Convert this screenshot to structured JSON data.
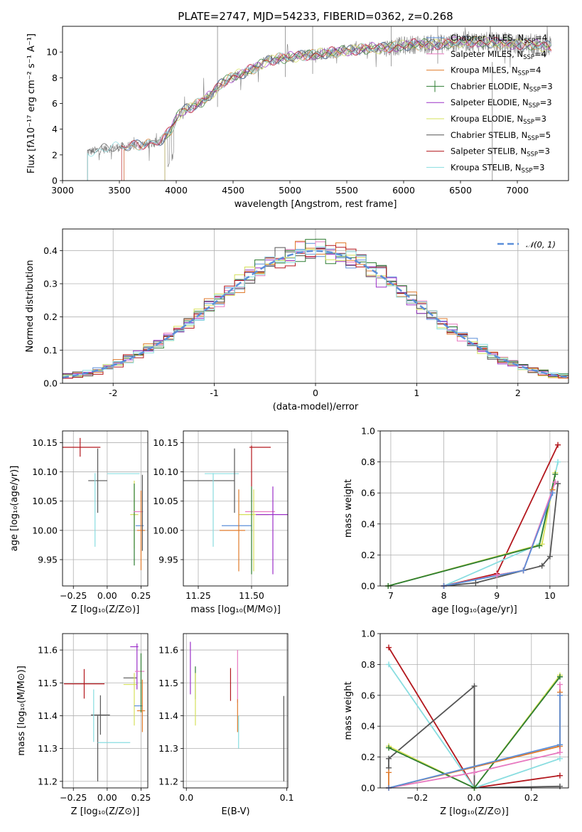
{
  "colors": {
    "chabrier_miles": "#5b8fd9",
    "salpeter_miles": "#e879c0",
    "kroupa_miles": "#e07b2c",
    "chabrier_elodie": "#2e7d32",
    "salpeter_elodie": "#9b30c8",
    "kroupa_elodie": "#d5e05a",
    "chabrier_stelib": "#555555",
    "salpeter_stelib": "#b3171d",
    "kroupa_stelib": "#88dde0",
    "spectrum": "#808080",
    "gauss": "#5b8fd9"
  },
  "chart_data": [
    {
      "id": "spectrum",
      "type": "line",
      "title": "PLATE=2747, MJD=54233, FIBERID=0362, z=0.268",
      "xlabel": "wavelength [Angstrom, rest frame]",
      "ylabel": "Flux [fλ10⁻¹⁷ erg cm⁻² s⁻¹ A⁻¹]",
      "xlim": [
        3000,
        7450
      ],
      "ylim": [
        0,
        12
      ],
      "xticks": [
        3000,
        3500,
        4000,
        4500,
        5000,
        5500,
        6000,
        6500,
        7000
      ],
      "yticks": [
        0,
        2,
        4,
        6,
        8,
        10
      ],
      "grid": false,
      "legend_position": "right",
      "legend": [
        "Chabrier MILES, N_SSP=4",
        "Salpeter MILES, N_SSP=4",
        "Kroupa MILES, N_SSP=4",
        "Chabrier ELODIE, N_SSP=3",
        "Salpeter ELODIE, N_SSP=3",
        "Kroupa ELODIE, N_SSP=3",
        "Chabrier STELIB, N_SSP=5",
        "Salpeter STELIB, N_SSP=3",
        "Kroupa STELIB, N_SSP=3"
      ],
      "continuum": {
        "x": [
          3200,
          3300,
          3400,
          3500,
          3600,
          3700,
          3800,
          3850,
          3900,
          3950,
          4000,
          4050,
          4100,
          4200,
          4300,
          4400,
          4500,
          4600,
          4700,
          4800,
          4900,
          5000,
          5100,
          5200,
          5300,
          5400,
          5500,
          5600,
          5700,
          5800,
          5900,
          6000,
          6100,
          6200,
          6300,
          6400,
          6500,
          6600,
          6700,
          6800,
          6900,
          7000,
          7100,
          7200,
          7300
        ],
        "y": [
          2.2,
          2.35,
          2.5,
          2.6,
          2.7,
          2.8,
          2.9,
          3.1,
          3.4,
          3.9,
          4.8,
          5.4,
          5.6,
          6.0,
          6.6,
          7.6,
          8.1,
          8.4,
          8.8,
          9.3,
          9.5,
          9.6,
          9.7,
          9.8,
          9.9,
          10.0,
          10.1,
          10.2,
          10.3,
          10.3,
          10.4,
          10.5,
          10.6,
          10.6,
          10.6,
          10.7,
          10.8,
          10.8,
          10.8,
          10.7,
          10.7,
          10.6,
          10.6,
          10.5,
          10.4
        ]
      }
    },
    {
      "id": "residuals",
      "type": "line",
      "xlabel": "(data-model)/error",
      "ylabel": "Normed distribution",
      "xlim": [
        -2.5,
        2.5
      ],
      "ylim": [
        0,
        0.465
      ],
      "xticks": [
        -2,
        -1,
        0,
        1,
        2
      ],
      "yticks": [
        0.0,
        0.1,
        0.2,
        0.3,
        0.4
      ],
      "grid": true,
      "legend_position": "top-right",
      "legend": [
        "𝒩(0, 1)"
      ],
      "bins": [
        -2.5,
        -2.4,
        -2.3,
        -2.2,
        -2.1,
        -2.0,
        -1.9,
        -1.8,
        -1.7,
        -1.6,
        -1.5,
        -1.4,
        -1.3,
        -1.2,
        -1.1,
        -1.0,
        -0.9,
        -0.8,
        -0.7,
        -0.6,
        -0.5,
        -0.4,
        -0.3,
        -0.2,
        -0.1,
        0.0,
        0.1,
        0.2,
        0.3,
        0.4,
        0.5,
        0.6,
        0.7,
        0.8,
        0.9,
        1.0,
        1.1,
        1.2,
        1.3,
        1.4,
        1.5,
        1.6,
        1.7,
        1.8,
        1.9,
        2.0,
        2.1,
        2.2,
        2.3,
        2.4
      ]
    },
    {
      "id": "age_vs_Z",
      "type": "scatter",
      "xlabel": "Z [log₁₀(Z/Z⊙)]",
      "ylabel": "age  [log₁₀(age/yr)]",
      "xlim": [
        -0.33,
        0.3
      ],
      "ylim": [
        9.905,
        10.17
      ],
      "xticks": [
        -0.25,
        0.0,
        0.25
      ],
      "xticklabels": [
        "−0.25",
        "0.00",
        "0.25"
      ],
      "yticks": [
        9.95,
        10.0,
        10.05,
        10.1,
        10.15
      ],
      "grid": true,
      "points": [
        {
          "model": "salpeter_stelib",
          "x": -0.2,
          "xerr": 0.15,
          "y": 10.142,
          "yerr": 0.016
        },
        {
          "model": "chabrier_stelib",
          "x": -0.07,
          "xerr": 0.07,
          "y": 10.085,
          "yerr": 0.055
        },
        {
          "model": "kroupa_stelib",
          "x": -0.09,
          "xerr": 0.0,
          "y": 10.035,
          "yerr": 0.063
        },
        {
          "model": "kroupa_stelib",
          "x": 0.12,
          "xerr": 0.12,
          "y": 10.097,
          "yerr": 0.0
        },
        {
          "model": "kroupa_elodie",
          "x": 0.2,
          "xerr": 0.03,
          "y": 10.027,
          "yerr": 0.058
        },
        {
          "model": "chabrier_elodie",
          "x": 0.2,
          "xerr": 0.0,
          "y": 10.01,
          "yerr": 0.07
        },
        {
          "model": "salpeter_miles",
          "x": 0.23,
          "xerr": 0.035,
          "y": 10.032,
          "yerr": 0.0
        },
        {
          "model": "chabrier_miles",
          "x": 0.24,
          "xerr": 0.03,
          "y": 10.008,
          "yerr": 0.0
        },
        {
          "model": "kroupa_miles",
          "x": 0.25,
          "xerr": 0.03,
          "y": 10.0,
          "yerr": 0.068
        },
        {
          "model": "chabrier_stelib",
          "x": 0.26,
          "xerr": 0.0,
          "y": 10.03,
          "yerr": 0.065
        }
      ]
    },
    {
      "id": "age_vs_mass",
      "type": "scatter",
      "xlabel": "mass [log₁₀(M/M⊙)]",
      "ylabel": "",
      "xlim": [
        11.18,
        11.67
      ],
      "ylim": [
        9.905,
        10.17
      ],
      "xticks": [
        11.25,
        11.5
      ],
      "xticklabels": [
        "11.25",
        "11.50"
      ],
      "yticks": [
        9.95,
        10.0,
        10.05,
        10.1,
        10.15
      ],
      "grid": true,
      "points": [
        {
          "model": "chabrier_stelib",
          "x": 11.3,
          "xerr": 0.12,
          "y": 10.085,
          "yerr": 0.0
        },
        {
          "model": "kroupa_stelib",
          "x": 11.36,
          "xerr": 0.08,
          "y": 10.097,
          "yerr": 0.0
        },
        {
          "model": "kroupa_stelib",
          "x": 11.32,
          "xerr": 0.0,
          "y": 10.035,
          "yerr": 0.063
        },
        {
          "model": "chabrier_stelib",
          "x": 11.42,
          "xerr": 0.0,
          "y": 10.085,
          "yerr": 0.055
        },
        {
          "model": "salpeter_stelib",
          "x": 11.54,
          "xerr": 0.05,
          "y": 10.142,
          "yerr": 0.0
        },
        {
          "model": "salpeter_stelib",
          "x": 11.5,
          "xerr": 0.0,
          "y": 10.11,
          "yerr": 0.035
        },
        {
          "model": "kroupa_miles",
          "x": 11.41,
          "xerr": 0.06,
          "y": 10.0,
          "yerr": 0.0
        },
        {
          "model": "chabrier_miles",
          "x": 11.43,
          "xerr": 0.07,
          "y": 10.008,
          "yerr": 0.0
        },
        {
          "model": "kroupa_elodie",
          "x": 11.51,
          "xerr": 0.07,
          "y": 10.027,
          "yerr": 0.0
        },
        {
          "model": "salpeter_miles",
          "x": 11.54,
          "xerr": 0.07,
          "y": 10.032,
          "yerr": 0.0
        },
        {
          "model": "salpeter_elodie",
          "x": 11.6,
          "xerr": 0.08,
          "y": 10.027,
          "yerr": 0.0
        },
        {
          "model": "salpeter_elodie",
          "x": 11.6,
          "xerr": 0.0,
          "y": 10.0,
          "yerr": 0.075
        },
        {
          "model": "kroupa_miles",
          "x": 11.44,
          "xerr": 0.0,
          "y": 10.0,
          "yerr": 0.07
        },
        {
          "model": "chabrier_elodie",
          "x": 11.5,
          "xerr": 0.0,
          "y": 10.0,
          "yerr": 0.075
        },
        {
          "model": "kroupa_elodie",
          "x": 11.51,
          "xerr": 0.0,
          "y": 10.0,
          "yerr": 0.07
        }
      ]
    },
    {
      "id": "weight_vs_age",
      "type": "line",
      "xlabel": "age  [log₁₀(age/yr)]",
      "ylabel": "mass weight",
      "xlim": [
        6.8,
        10.35
      ],
      "ylim": [
        0,
        1.0
      ],
      "xticks": [
        7,
        8,
        9,
        10
      ],
      "yticks": [
        0.0,
        0.2,
        0.4,
        0.6,
        0.8,
        1.0
      ],
      "grid": true,
      "series": [
        {
          "model": "salpeter_stelib",
          "x": [
            8.0,
            9.0,
            10.15
          ],
          "y": [
            0.0,
            0.08,
            0.91
          ]
        },
        {
          "model": "kroupa_stelib",
          "x": [
            8.0,
            9.8,
            10.15
          ],
          "y": [
            0.0,
            0.27,
            0.8
          ]
        },
        {
          "model": "kroupa_elodie",
          "x": [
            6.95,
            9.85,
            10.1
          ],
          "y": [
            0.0,
            0.27,
            0.73
          ]
        },
        {
          "model": "chabrier_elodie",
          "x": [
            6.95,
            9.8,
            10.1
          ],
          "y": [
            0.0,
            0.26,
            0.72
          ]
        },
        {
          "model": "chabrier_stelib",
          "x": [
            8.0,
            8.6,
            9.5,
            9.85,
            10.0,
            10.15
          ],
          "y": [
            0.0,
            0.02,
            0.1,
            0.13,
            0.19,
            0.66
          ]
        },
        {
          "model": "kroupa_miles",
          "x": [
            8.0,
            9.0,
            9.5,
            10.05
          ],
          "y": [
            0.0,
            0.07,
            0.1,
            0.62
          ]
        },
        {
          "model": "salpeter_miles",
          "x": [
            8.0,
            9.0,
            9.5,
            10.1
          ],
          "y": [
            0.0,
            0.07,
            0.1,
            0.67
          ]
        },
        {
          "model": "chabrier_miles",
          "x": [
            8.0,
            9.5,
            10.05
          ],
          "y": [
            0.0,
            0.1,
            0.6
          ]
        }
      ]
    },
    {
      "id": "mass_vs_Z",
      "type": "scatter",
      "xlabel": "Z [log₁₀(Z/Z⊙)]",
      "ylabel": "mass [log₁₀(M/M⊙)]",
      "xlim": [
        -0.33,
        0.3
      ],
      "ylim": [
        11.18,
        11.65
      ],
      "xticks": [
        -0.25,
        0.0,
        0.25
      ],
      "xticklabels": [
        "−0.25",
        "0.00",
        "0.25"
      ],
      "yticks": [
        11.2,
        11.3,
        11.4,
        11.5,
        11.6
      ],
      "grid": true,
      "points": [
        {
          "model": "salpeter_stelib",
          "x": -0.17,
          "xerr": 0.15,
          "y": 11.497,
          "yerr": 0.045
        },
        {
          "model": "chabrier_stelib",
          "x": -0.05,
          "xerr": 0.07,
          "y": 11.402,
          "yerr": 0.06
        },
        {
          "model": "chabrier_stelib",
          "x": -0.07,
          "xerr": 0.0,
          "y": 11.3,
          "yerr": 0.1
        },
        {
          "model": "kroupa_stelib",
          "x": 0.05,
          "xerr": 0.12,
          "y": 11.318,
          "yerr": 0.0
        },
        {
          "model": "kroupa_stelib",
          "x": -0.1,
          "xerr": 0.0,
          "y": 11.4,
          "yerr": 0.08
        },
        {
          "model": "chabrier_stelib",
          "x": 0.17,
          "xerr": 0.05,
          "y": 11.515,
          "yerr": 0.0
        },
        {
          "model": "kroupa_elodie",
          "x": 0.17,
          "xerr": 0.05,
          "y": 11.495,
          "yerr": 0.0
        },
        {
          "model": "salpeter_elodie",
          "x": 0.2,
          "xerr": 0.03,
          "y": 11.61,
          "yerr": 0.0
        },
        {
          "model": "salpeter_elodie",
          "x": 0.22,
          "xerr": 0.0,
          "y": 11.55,
          "yerr": 0.07
        },
        {
          "model": "salpeter_miles",
          "x": 0.24,
          "xerr": 0.035,
          "y": 11.535,
          "yerr": 0.0
        },
        {
          "model": "kroupa_elodie",
          "x": 0.2,
          "xerr": 0.0,
          "y": 11.45,
          "yerr": 0.08
        },
        {
          "model": "chabrier_miles",
          "x": 0.23,
          "xerr": 0.03,
          "y": 11.43,
          "yerr": 0.0
        },
        {
          "model": "kroupa_miles",
          "x": 0.25,
          "xerr": 0.03,
          "y": 11.415,
          "yerr": 0.0
        },
        {
          "model": "kroupa_miles",
          "x": 0.26,
          "xerr": 0.0,
          "y": 11.43,
          "yerr": 0.08
        },
        {
          "model": "chabrier_elodie",
          "x": 0.25,
          "xerr": 0.0,
          "y": 11.5,
          "yerr": 0.09
        }
      ]
    },
    {
      "id": "mass_vs_EBV",
      "type": "scatter",
      "xlabel": "E(B-V)",
      "ylabel": "",
      "xlim": [
        -0.003,
        0.101
      ],
      "ylim": [
        11.18,
        11.65
      ],
      "xticks": [
        0.0,
        0.1
      ],
      "xticklabels": [
        "0.0",
        "0.1"
      ],
      "yticks": [
        11.2,
        11.3,
        11.4,
        11.5,
        11.6
      ],
      "grid": true,
      "points": [
        {
          "model": "salpeter_elodie",
          "x": 0.004,
          "xerr": 0.0,
          "y": 11.545,
          "yerr": 0.08
        },
        {
          "model": "chabrier_elodie",
          "x": 0.009,
          "xerr": 0.0,
          "y": 11.5,
          "yerr": 0.05
        },
        {
          "model": "kroupa_elodie",
          "x": 0.009,
          "xerr": 0.0,
          "y": 11.45,
          "yerr": 0.08
        },
        {
          "model": "salpeter_stelib",
          "x": 0.044,
          "xerr": 0.0,
          "y": 11.495,
          "yerr": 0.05
        },
        {
          "model": "salpeter_miles",
          "x": 0.051,
          "xerr": 0.0,
          "y": 11.52,
          "yerr": 0.08
        },
        {
          "model": "kroupa_miles",
          "x": 0.051,
          "xerr": 0.0,
          "y": 11.4,
          "yerr": 0.05
        },
        {
          "model": "kroupa_stelib",
          "x": 0.052,
          "xerr": 0.0,
          "y": 11.35,
          "yerr": 0.05
        },
        {
          "model": "chabrier_stelib",
          "x": 0.097,
          "xerr": 0.0,
          "y": 11.33,
          "yerr": 0.13
        }
      ]
    },
    {
      "id": "weight_vs_Z",
      "type": "line",
      "xlabel": "Z [log₁₀(Z/Z⊙)]",
      "ylabel": "mass weight",
      "xlim": [
        -0.33,
        0.33
      ],
      "ylim": [
        0,
        1.0
      ],
      "xticks": [
        -0.2,
        0.0,
        0.2
      ],
      "xticklabels": [
        "−0.2",
        "0.0",
        "0.2"
      ],
      "yticks": [
        0.0,
        0.2,
        0.4,
        0.6,
        0.8,
        1.0
      ],
      "grid": true,
      "series": [
        {
          "model": "salpeter_stelib",
          "x": [
            -0.3,
            0.0,
            0.3
          ],
          "y": [
            0.91,
            0.0,
            0.08
          ]
        },
        {
          "model": "kroupa_stelib",
          "x": [
            -0.3,
            0.0,
            0.3
          ],
          "y": [
            0.8,
            0.0,
            0.19
          ]
        },
        {
          "model": "chabrier_stelib",
          "x": [
            -0.3,
            -0.3,
            0.0,
            0.0,
            0.3
          ],
          "y": [
            0.13,
            0.19,
            0.66,
            0.0,
            0.01
          ]
        },
        {
          "model": "kroupa_elodie",
          "x": [
            -0.3,
            0.0,
            0.3
          ],
          "y": [
            0.27,
            0.0,
            0.73
          ]
        },
        {
          "model": "chabrier_elodie",
          "x": [
            -0.3,
            0.0,
            0.3
          ],
          "y": [
            0.26,
            0.0,
            0.72
          ]
        },
        {
          "model": "salpeter_miles",
          "x": [
            -0.3,
            0.0,
            0.3,
            0.3
          ],
          "y": [
            0.0,
            0.1,
            0.23,
            0.67
          ]
        },
        {
          "model": "kroupa_miles",
          "x": [
            -0.3,
            -0.3,
            0.3,
            0.3
          ],
          "y": [
            0.1,
            0.0,
            0.27,
            0.62
          ]
        },
        {
          "model": "chabrier_miles",
          "x": [
            -0.3,
            0.3,
            0.3
          ],
          "y": [
            0.0,
            0.28,
            0.6
          ]
        }
      ]
    }
  ]
}
